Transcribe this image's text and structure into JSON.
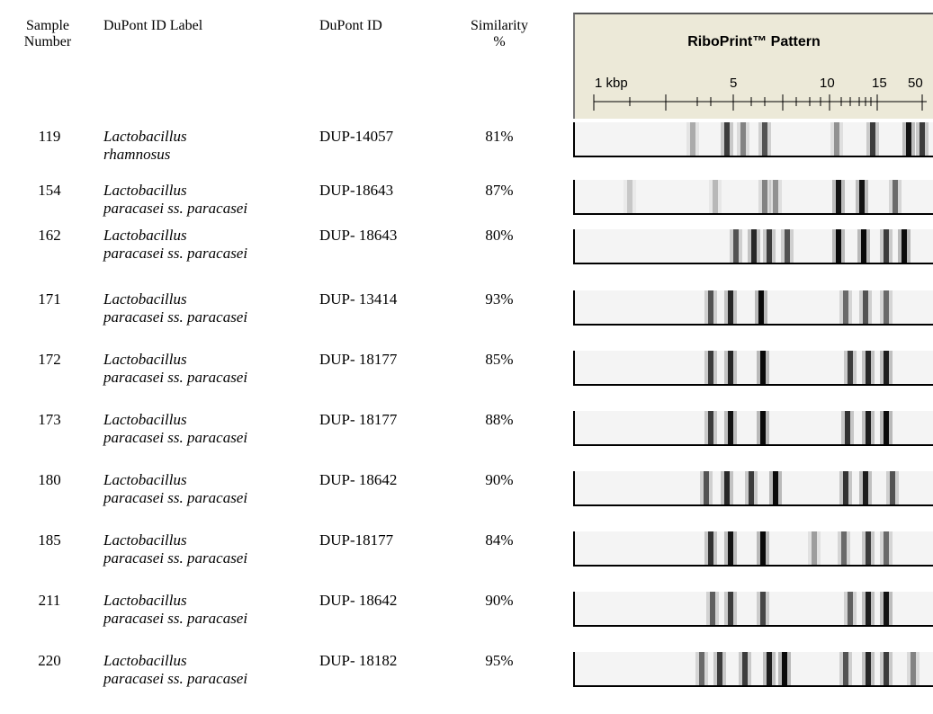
{
  "header": {
    "sample_number": [
      "Sample",
      "Number"
    ],
    "label": "DuPont ID Label",
    "dupont_id": "DuPont ID",
    "similarity": [
      "Similarity",
      "%"
    ],
    "riboprint": "RiboPrint™ Pattern",
    "scale": [
      "1 kbp",
      "5",
      "10",
      "15",
      "50"
    ]
  },
  "table": {
    "rows": [
      [
        "119",
        [
          "Lactobacillus",
          "rhamnosus"
        ],
        "DUP-14057",
        "81%"
      ],
      [
        "154",
        [
          "Lactobacillus",
          "paracasei ss. paracasei"
        ],
        "DUP-18643",
        "87%"
      ],
      [
        "162",
        [
          "Lactobacillus",
          "paracasei ss. paracasei"
        ],
        "DUP- 18643",
        "80%"
      ],
      [
        "171",
        [
          "Lactobacillus",
          "paracasei ss. paracasei"
        ],
        "DUP- 13414",
        "93%"
      ],
      [
        "172",
        [
          "Lactobacillus",
          "paracasei ss. paracasei"
        ],
        "DUP- 18177",
        "85%"
      ],
      [
        "173",
        [
          "Lactobacillus",
          "paracasei ss. paracasei"
        ],
        "DUP- 18177",
        "88%"
      ],
      [
        "180",
        [
          "Lactobacillus",
          "paracasei ss. paracasei"
        ],
        "DUP- 18642",
        "90%"
      ],
      [
        "185",
        [
          "Lactobacillus",
          "paracasei ss. paracasei"
        ],
        "DUP-18177",
        "84%"
      ],
      [
        "211",
        [
          "Lactobacillus",
          "paracasei ss. paracasei"
        ],
        "DUP- 18642",
        "90%"
      ],
      [
        "220",
        [
          "Lactobacillus",
          "paracasei ss. paracasei"
        ],
        "DUP- 18182",
        "95%"
      ]
    ]
  }
}
